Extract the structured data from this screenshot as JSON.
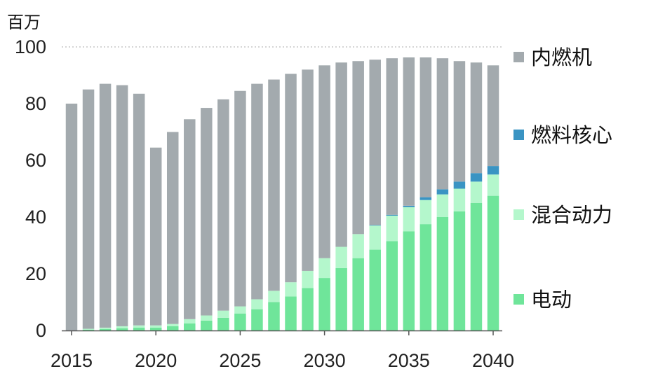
{
  "chart_data": {
    "type": "bar",
    "stacked": true,
    "unit_label": "百万",
    "ylim": [
      0,
      100
    ],
    "yticks": [
      0,
      20,
      40,
      60,
      80,
      100
    ],
    "xticks": [
      2015,
      2020,
      2025,
      2030,
      2035,
      2040
    ],
    "categories": [
      2015,
      2016,
      2017,
      2018,
      2019,
      2020,
      2021,
      2022,
      2023,
      2024,
      2025,
      2026,
      2027,
      2028,
      2029,
      2030,
      2031,
      2032,
      2033,
      2034,
      2035,
      2036,
      2037,
      2038,
      2039,
      2040
    ],
    "totals": [
      80,
      85,
      87,
      86.5,
      83.5,
      64.5,
      70,
      74.5,
      78.5,
      81.5,
      84.5,
      87,
      88.5,
      90.5,
      92,
      93.5,
      94.5,
      95,
      95.5,
      96,
      96.3,
      96.3,
      96,
      95,
      94.5,
      93.5
    ],
    "series": [
      {
        "name": "电动",
        "color": "#6fe59a",
        "values": [
          0,
          0.3,
          0.5,
          0.8,
          1,
          1,
          1.5,
          2.5,
          3.5,
          4.5,
          6,
          7.5,
          10,
          12,
          15,
          18.5,
          22,
          25.5,
          28.5,
          31.5,
          35,
          37.5,
          40,
          42,
          45,
          47.5
        ]
      },
      {
        "name": "混合动力",
        "color": "#b4f7cc",
        "values": [
          0,
          0.3,
          0.5,
          0.7,
          0.8,
          0.8,
          0.8,
          1.5,
          1.8,
          2.5,
          2.5,
          3.5,
          4,
          5,
          6,
          7,
          7.5,
          8.5,
          8.5,
          9,
          8.5,
          8.5,
          8,
          8,
          7.5,
          7.5
        ]
      },
      {
        "name": "燃料核心",
        "color": "#3a94c3",
        "values": [
          0,
          0,
          0,
          0,
          0,
          0,
          0,
          0,
          0,
          0,
          0,
          0,
          0,
          0,
          0,
          0,
          0,
          0,
          0.2,
          0.3,
          0.5,
          1,
          1.8,
          2.5,
          3,
          3
        ]
      },
      {
        "name": "内燃机",
        "color": "#a3aaae",
        "values": [
          80,
          84.4,
          86,
          85,
          81.7,
          62.7,
          67.7,
          70.5,
          73.2,
          74.5,
          76,
          76,
          74.5,
          73.5,
          71,
          68,
          65,
          61,
          58.3,
          55.2,
          52.3,
          49.3,
          46.2,
          42.5,
          39,
          35.5
        ]
      }
    ],
    "legend": {
      "position": "right",
      "order": [
        "内燃机",
        "燃料核心",
        "混合动力",
        "电动"
      ]
    }
  }
}
